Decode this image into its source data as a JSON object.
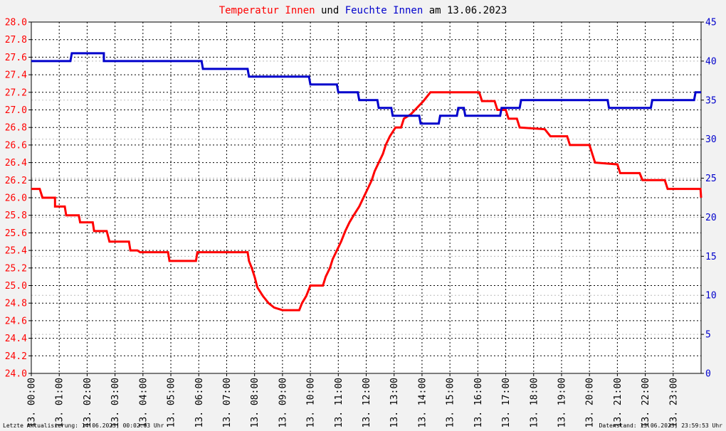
{
  "title": {
    "part1": "Temperatur Innen",
    "part2": " und ",
    "part3": "Feuchte Innen",
    "part4": " am 13.06.2023",
    "color1": "#ff0000",
    "color2": "#000000",
    "color3": "#0000cc",
    "color4": "#000000"
  },
  "footer": {
    "left": "Letzte Aktualisierung: 14.06.2023, 00:02:03 Uhr",
    "right": "Datenstand: 13.06.2023, 23:59:53 Uhr"
  },
  "chart_data": {
    "type": "line",
    "x_unit": "hours",
    "xlim": [
      0,
      24
    ],
    "x_ticks": [
      0,
      1,
      2,
      3,
      4,
      5,
      6,
      7,
      8,
      9,
      10,
      11,
      12,
      13,
      14,
      15,
      16,
      17,
      18,
      19,
      20,
      21,
      22,
      23
    ],
    "x_tick_labels": [
      "13. 00:00",
      "13. 01:00",
      "13. 02:00",
      "13. 03:00",
      "13. 04:00",
      "13. 05:00",
      "13. 06:00",
      "13. 07:00",
      "13. 08:00",
      "13. 09:00",
      "13. 10:00",
      "13. 11:00",
      "13. 12:00",
      "13. 13:00",
      "13. 14:00",
      "13. 15:00",
      "13. 16:00",
      "13. 17:00",
      "13. 18:00",
      "13. 19:00",
      "13. 20:00",
      "13. 21:00",
      "13. 22:00",
      "13. 23:00"
    ],
    "y_left": {
      "ylim": [
        24.0,
        28.0
      ],
      "ticks": [
        "24.0",
        "24.2",
        "24.4",
        "24.6",
        "24.8",
        "25.0",
        "25.2",
        "25.4",
        "25.6",
        "25.8",
        "26.0",
        "26.2",
        "26.4",
        "26.6",
        "26.8",
        "27.0",
        "27.2",
        "27.4",
        "27.6",
        "27.8",
        "28.0"
      ],
      "color": "#ff0000"
    },
    "y_right": {
      "ylim": [
        0,
        45
      ],
      "ticks": [
        "0",
        "5",
        "10",
        "15",
        "20",
        "25",
        "30",
        "35",
        "40",
        "45"
      ],
      "color": "#0000cc"
    },
    "grid": true,
    "series": [
      {
        "axis": "left",
        "color": "#ff0000",
        "points": [
          [
            0.0,
            26.1
          ],
          [
            0.3,
            26.1
          ],
          [
            0.4,
            26.0
          ],
          [
            0.85,
            26.0
          ],
          [
            0.85,
            25.9
          ],
          [
            1.2,
            25.9
          ],
          [
            1.25,
            25.8
          ],
          [
            1.7,
            25.8
          ],
          [
            1.75,
            25.72
          ],
          [
            2.2,
            25.72
          ],
          [
            2.25,
            25.62
          ],
          [
            2.7,
            25.62
          ],
          [
            2.8,
            25.5
          ],
          [
            3.5,
            25.5
          ],
          [
            3.55,
            25.4
          ],
          [
            3.8,
            25.4
          ],
          [
            3.9,
            25.38
          ],
          [
            4.9,
            25.38
          ],
          [
            4.95,
            25.28
          ],
          [
            5.9,
            25.28
          ],
          [
            5.95,
            25.38
          ],
          [
            7.75,
            25.38
          ],
          [
            7.8,
            25.28
          ],
          [
            7.9,
            25.2
          ],
          [
            8.0,
            25.1
          ],
          [
            8.1,
            24.98
          ],
          [
            8.3,
            24.88
          ],
          [
            8.5,
            24.8
          ],
          [
            8.7,
            24.75
          ],
          [
            9.0,
            24.72
          ],
          [
            9.6,
            24.72
          ],
          [
            9.7,
            24.8
          ],
          [
            9.85,
            24.88
          ],
          [
            10.0,
            25.0
          ],
          [
            10.45,
            25.0
          ],
          [
            10.55,
            25.1
          ],
          [
            10.7,
            25.2
          ],
          [
            10.8,
            25.3
          ],
          [
            10.95,
            25.4
          ],
          [
            11.1,
            25.5
          ],
          [
            11.25,
            25.62
          ],
          [
            11.4,
            25.72
          ],
          [
            11.55,
            25.8
          ],
          [
            11.75,
            25.9
          ],
          [
            11.9,
            26.0
          ],
          [
            12.05,
            26.1
          ],
          [
            12.2,
            26.2
          ],
          [
            12.3,
            26.3
          ],
          [
            12.45,
            26.4
          ],
          [
            12.6,
            26.5
          ],
          [
            12.7,
            26.6
          ],
          [
            12.85,
            26.7
          ],
          [
            13.05,
            26.8
          ],
          [
            13.25,
            26.8
          ],
          [
            13.35,
            26.9
          ],
          [
            13.6,
            26.95
          ],
          [
            13.75,
            27.0
          ],
          [
            13.9,
            27.05
          ],
          [
            14.05,
            27.1
          ],
          [
            14.3,
            27.2
          ],
          [
            16.05,
            27.2
          ],
          [
            16.15,
            27.1
          ],
          [
            16.6,
            27.1
          ],
          [
            16.7,
            27.0
          ],
          [
            17.0,
            27.0
          ],
          [
            17.1,
            26.9
          ],
          [
            17.4,
            26.9
          ],
          [
            17.5,
            26.8
          ],
          [
            18.4,
            26.78
          ],
          [
            18.6,
            26.7
          ],
          [
            19.2,
            26.7
          ],
          [
            19.3,
            26.6
          ],
          [
            20.0,
            26.6
          ],
          [
            20.1,
            26.5
          ],
          [
            20.2,
            26.4
          ],
          [
            21.0,
            26.38
          ],
          [
            21.1,
            26.28
          ],
          [
            21.8,
            26.28
          ],
          [
            21.9,
            26.2
          ],
          [
            22.7,
            26.2
          ],
          [
            22.8,
            26.1
          ],
          [
            23.98,
            26.1
          ],
          [
            24.0,
            26.0
          ]
        ]
      },
      {
        "axis": "right",
        "color": "#0000cc",
        "points": [
          [
            0.0,
            40.0
          ],
          [
            1.4,
            40.0
          ],
          [
            1.45,
            41.0
          ],
          [
            2.6,
            41.0
          ],
          [
            2.6,
            40.0
          ],
          [
            6.1,
            40.0
          ],
          [
            6.15,
            39.0
          ],
          [
            7.75,
            39.0
          ],
          [
            7.8,
            38.0
          ],
          [
            9.95,
            38.0
          ],
          [
            10.0,
            37.0
          ],
          [
            10.95,
            37.0
          ],
          [
            11.0,
            36.0
          ],
          [
            11.7,
            36.0
          ],
          [
            11.75,
            35.0
          ],
          [
            12.4,
            35.0
          ],
          [
            12.45,
            34.0
          ],
          [
            12.9,
            34.0
          ],
          [
            12.95,
            33.0
          ],
          [
            13.9,
            33.0
          ],
          [
            13.95,
            32.0
          ],
          [
            14.6,
            32.0
          ],
          [
            14.65,
            33.0
          ],
          [
            15.25,
            33.0
          ],
          [
            15.3,
            34.0
          ],
          [
            15.5,
            34.0
          ],
          [
            15.55,
            33.0
          ],
          [
            16.8,
            33.0
          ],
          [
            16.85,
            34.0
          ],
          [
            17.5,
            34.0
          ],
          [
            17.55,
            35.0
          ],
          [
            20.65,
            35.0
          ],
          [
            20.7,
            34.0
          ],
          [
            22.2,
            34.0
          ],
          [
            22.25,
            35.0
          ],
          [
            23.75,
            35.0
          ],
          [
            23.8,
            36.0
          ],
          [
            24.0,
            36.0
          ]
        ]
      }
    ]
  }
}
